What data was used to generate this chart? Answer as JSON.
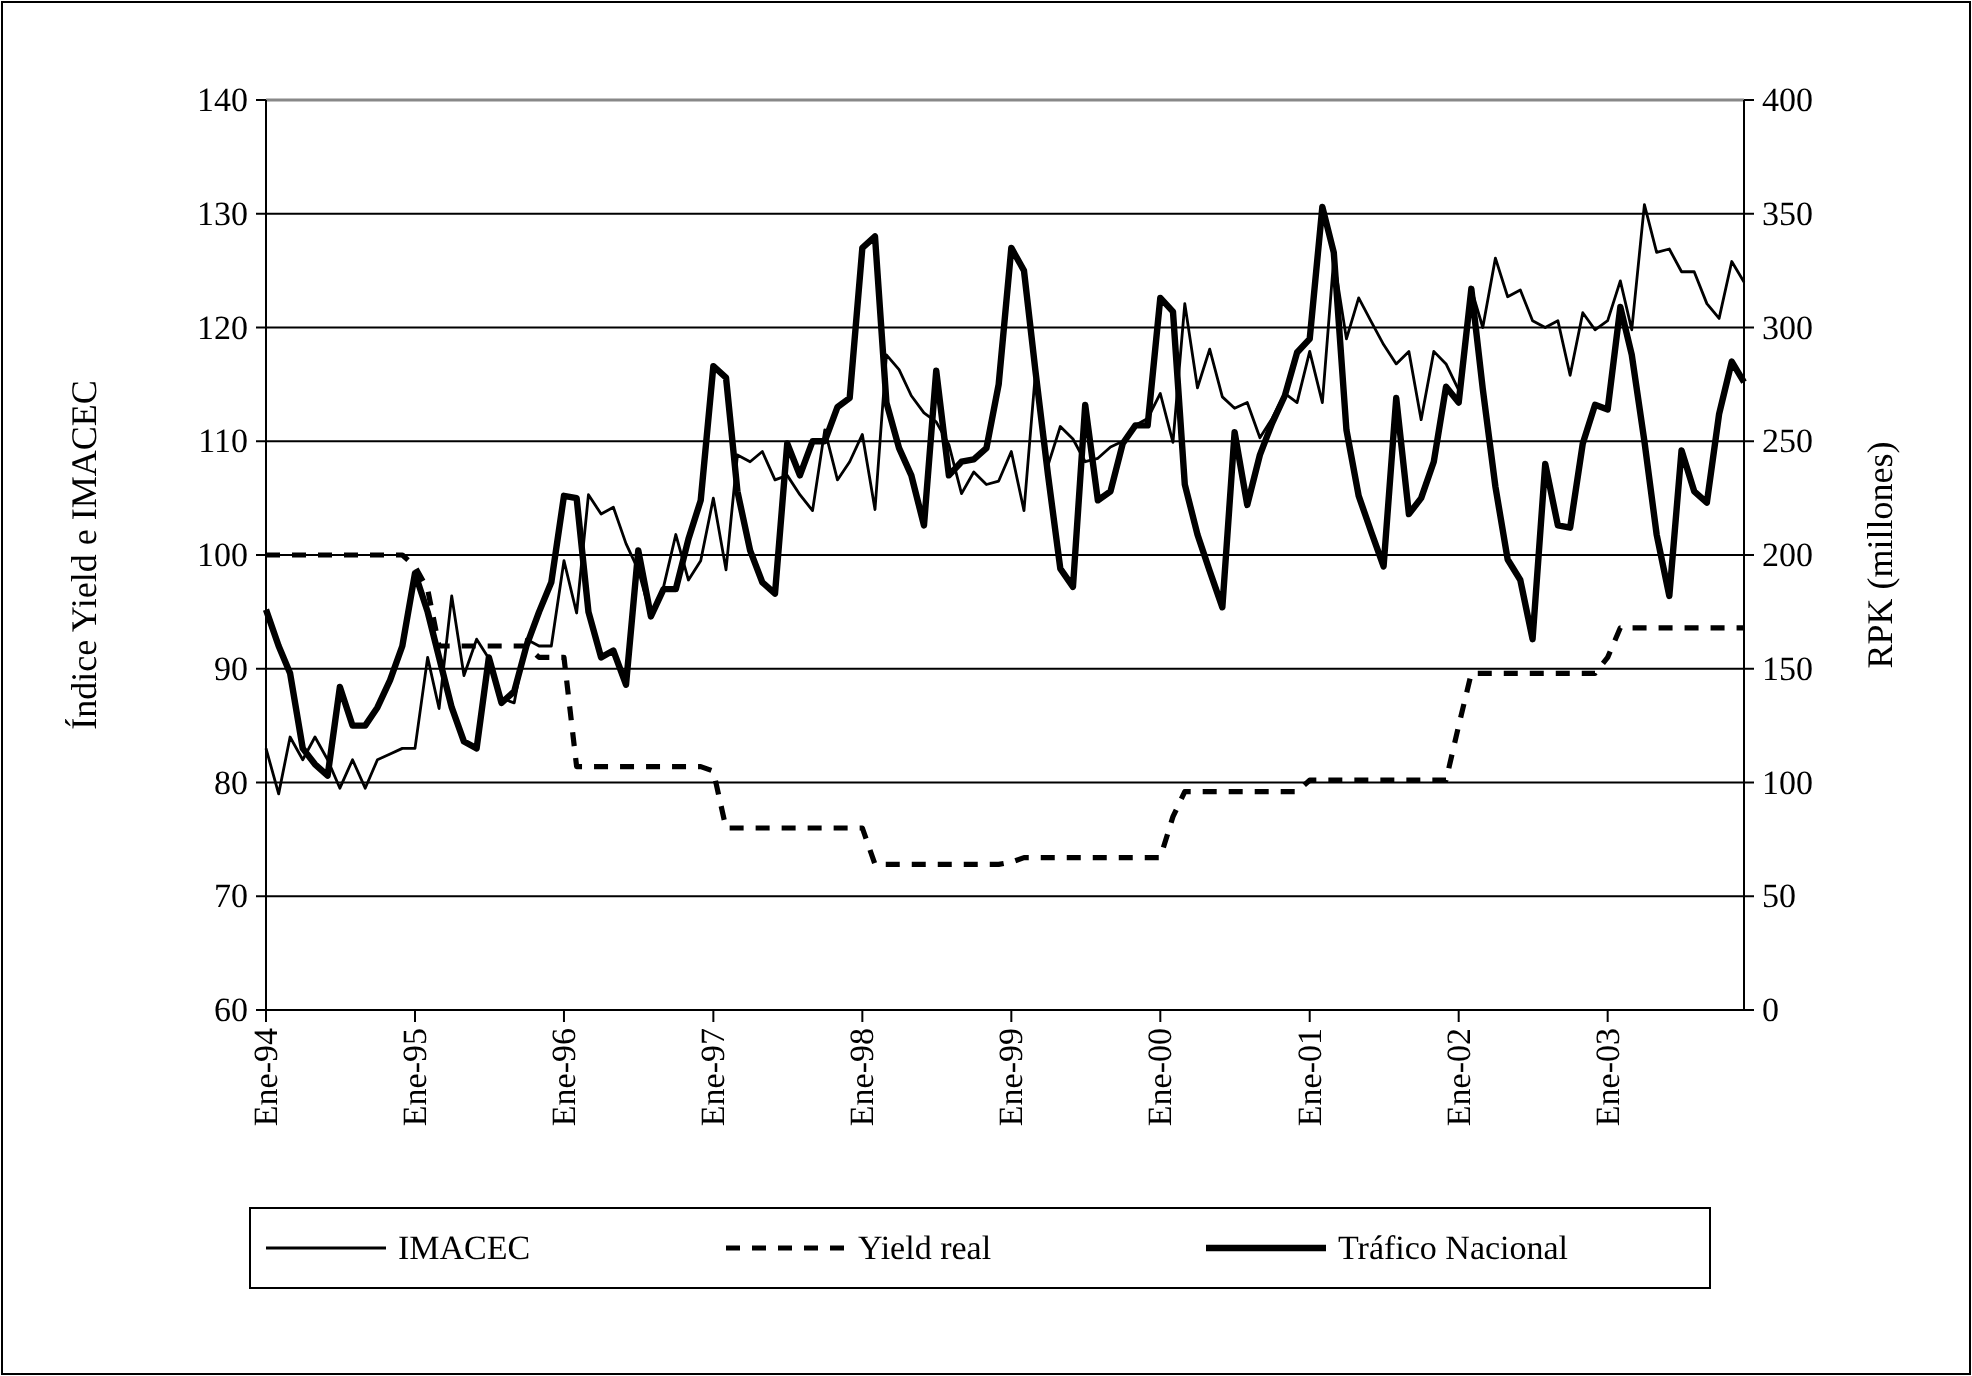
{
  "chart_data": {
    "type": "line",
    "ylabel": "Índice Yield e IMACEC",
    "y2label": "RPK (millones)",
    "x": [
      "1994-01",
      "1994-02",
      "1994-03",
      "1994-04",
      "1994-05",
      "1994-06",
      "1994-07",
      "1994-08",
      "1994-09",
      "1994-10",
      "1994-11",
      "1994-12",
      "1995-01",
      "1995-02",
      "1995-03",
      "1995-04",
      "1995-05",
      "1995-06",
      "1995-07",
      "1995-08",
      "1995-09",
      "1995-10",
      "1995-11",
      "1995-12",
      "1996-01",
      "1996-02",
      "1996-03",
      "1996-04",
      "1996-05",
      "1996-06",
      "1996-07",
      "1996-08",
      "1996-09",
      "1996-10",
      "1996-11",
      "1996-12",
      "1997-01",
      "1997-02",
      "1997-03",
      "1997-04",
      "1997-05",
      "1997-06",
      "1997-07",
      "1997-08",
      "1997-09",
      "1997-10",
      "1997-11",
      "1997-12",
      "1998-01",
      "1998-02",
      "1998-03",
      "1998-04",
      "1998-05",
      "1998-06",
      "1998-07",
      "1998-08",
      "1998-09",
      "1998-10",
      "1998-11",
      "1998-12",
      "1999-01",
      "1999-02",
      "1999-03",
      "1999-04",
      "1999-05",
      "1999-06",
      "1999-07",
      "1999-08",
      "1999-09",
      "1999-10",
      "1999-11",
      "1999-12",
      "2000-01",
      "2000-02",
      "2000-03",
      "2000-04",
      "2000-05",
      "2000-06",
      "2000-07",
      "2000-08",
      "2000-09",
      "2000-10",
      "2000-11",
      "2000-12",
      "2001-01",
      "2001-02",
      "2001-03",
      "2001-04",
      "2001-05",
      "2001-06",
      "2001-07",
      "2001-08",
      "2001-09",
      "2001-10",
      "2001-11",
      "2001-12",
      "2002-01",
      "2002-02",
      "2002-03",
      "2002-04",
      "2002-05",
      "2002-06",
      "2002-07",
      "2002-08",
      "2002-09",
      "2002-10",
      "2002-11",
      "2002-12",
      "2003-01",
      "2003-02",
      "2003-03",
      "2003-04",
      "2003-05",
      "2003-06",
      "2003-07",
      "2003-08",
      "2003-09",
      "2003-10",
      "2003-11",
      "2003-12"
    ],
    "series": [
      {
        "name": "IMACEC",
        "color": "#000000",
        "line_style": "solid",
        "values": [
          83,
          79,
          84,
          82,
          84,
          82,
          79.5,
          82,
          79.5,
          82,
          82.5,
          83,
          83,
          91,
          86.5,
          96.4,
          89.4,
          92.6,
          90.9,
          87.4,
          87,
          92.6,
          92,
          92,
          99.5,
          94.9,
          105.3,
          103.6,
          104.2,
          101,
          98.7,
          94.6,
          97.2,
          101.8,
          97.8,
          99.5,
          105,
          98.7,
          108.8,
          108.2,
          109.1,
          106.6,
          107,
          105.3,
          103.9,
          111,
          106.6,
          108.2,
          110.6,
          104,
          117.6,
          116.3,
          114,
          112.5,
          111.7,
          109.7,
          105.4,
          107.3,
          106.2,
          106.5,
          109.1,
          103.9,
          116,
          107.9,
          111.3,
          110.2,
          108.2,
          108.5,
          109.5,
          110,
          111.4,
          112,
          114.2,
          109.9,
          122.1,
          114.7,
          118.1,
          113.9,
          112.9,
          113.4,
          110.3,
          112,
          114.2,
          113.4,
          117.9,
          113.4,
          126.1,
          119,
          122.6,
          120.5,
          118.5,
          116.8,
          117.9,
          111.9,
          117.9,
          116.8,
          114.5,
          123.4,
          120,
          126.1,
          122.7,
          123.3,
          120.6,
          120,
          120.6,
          115.8,
          121.3,
          119.8,
          120.6,
          124.1,
          119.8,
          130.8,
          126.6,
          126.9,
          124.9,
          124.9,
          122.1,
          120.8,
          125.8,
          124
        ]
      },
      {
        "name": "Yield real",
        "color": "#000000",
        "line_style": "dashed",
        "values": [
          100,
          100,
          100,
          100,
          100,
          100,
          100,
          100,
          100,
          100,
          100,
          100,
          99,
          97,
          92,
          92,
          92,
          92,
          92,
          92,
          92,
          92,
          91,
          91,
          91,
          81.4,
          81.4,
          81.4,
          81.4,
          81.4,
          81.4,
          81.4,
          81.4,
          81.4,
          81.4,
          81.4,
          81,
          76,
          76,
          76,
          76,
          76,
          76,
          76,
          76,
          76,
          76,
          76,
          76,
          72.8,
          72.8,
          72.8,
          72.8,
          72.8,
          72.8,
          72.8,
          72.8,
          72.8,
          72.8,
          72.8,
          73,
          73.4,
          73.4,
          73.4,
          73.4,
          73.4,
          73.4,
          73.4,
          73.4,
          73.4,
          73.4,
          73.4,
          73.4,
          77,
          79.2,
          79.2,
          79.2,
          79.2,
          79.2,
          79.2,
          79.2,
          79.2,
          79.2,
          79.2,
          80.2,
          80.2,
          80.2,
          80.2,
          80.2,
          80.2,
          80.2,
          80.2,
          80.2,
          80.2,
          80.2,
          80.2,
          85,
          89.6,
          89.6,
          89.6,
          89.6,
          89.6,
          89.6,
          89.6,
          89.6,
          89.6,
          89.6,
          89.6,
          91,
          93.6,
          93.6,
          93.6,
          93.6,
          93.6,
          93.6,
          93.6,
          93.6,
          93.6,
          93.6,
          93.6
        ]
      },
      {
        "name": "Tráfico Nacional",
        "color": "#000000",
        "line_style": "solid",
        "axis": "y2",
        "values": [
          176,
          160,
          148,
          115,
          108,
          103,
          142,
          125,
          125,
          133,
          145,
          160,
          192,
          175,
          155,
          133,
          118,
          115,
          155,
          135,
          140,
          160,
          175,
          188,
          226,
          225,
          175,
          155,
          158,
          143,
          202,
          173,
          185,
          185,
          207,
          224,
          283,
          278,
          228,
          202,
          188,
          183,
          249,
          235,
          250,
          250,
          265,
          269,
          335,
          340,
          267,
          247,
          235,
          213,
          281,
          235,
          241,
          242,
          247,
          275,
          335,
          325,
          281,
          235,
          194,
          186,
          266,
          224,
          228,
          249,
          257,
          257,
          313,
          307,
          231,
          209,
          193,
          177,
          254,
          222,
          244,
          258,
          270,
          289,
          295,
          353,
          333,
          255,
          226,
          210,
          195,
          269,
          218,
          225,
          241,
          274,
          267,
          317,
          273,
          230,
          198,
          189,
          163,
          240,
          213,
          212,
          249,
          266,
          264,
          309,
          288,
          250,
          209,
          182,
          246,
          228,
          223,
          262,
          285,
          276
        ]
      }
    ],
    "xlim": [
      "1994-01",
      "2003-12"
    ],
    "xticks": [
      {
        "value": "1994-01",
        "label": "Ene-94"
      },
      {
        "value": "1995-01",
        "label": "Ene-95"
      },
      {
        "value": "1996-01",
        "label": "Ene-96"
      },
      {
        "value": "1997-01",
        "label": "Ene-97"
      },
      {
        "value": "1998-01",
        "label": "Ene-98"
      },
      {
        "value": "1999-01",
        "label": "Ene-99"
      },
      {
        "value": "2000-01",
        "label": "Ene-00"
      },
      {
        "value": "2001-01",
        "label": "Ene-01"
      },
      {
        "value": "2002-01",
        "label": "Ene-02"
      },
      {
        "value": "2003-01",
        "label": "Ene-03"
      }
    ],
    "ylim": [
      60,
      140
    ],
    "yticks": [
      60,
      70,
      80,
      90,
      100,
      110,
      120,
      130,
      140
    ],
    "y2lim": [
      0,
      400
    ],
    "y2ticks": [
      0,
      50,
      100,
      150,
      200,
      250,
      300,
      350,
      400
    ],
    "grid": "y",
    "legend": "bottom"
  }
}
